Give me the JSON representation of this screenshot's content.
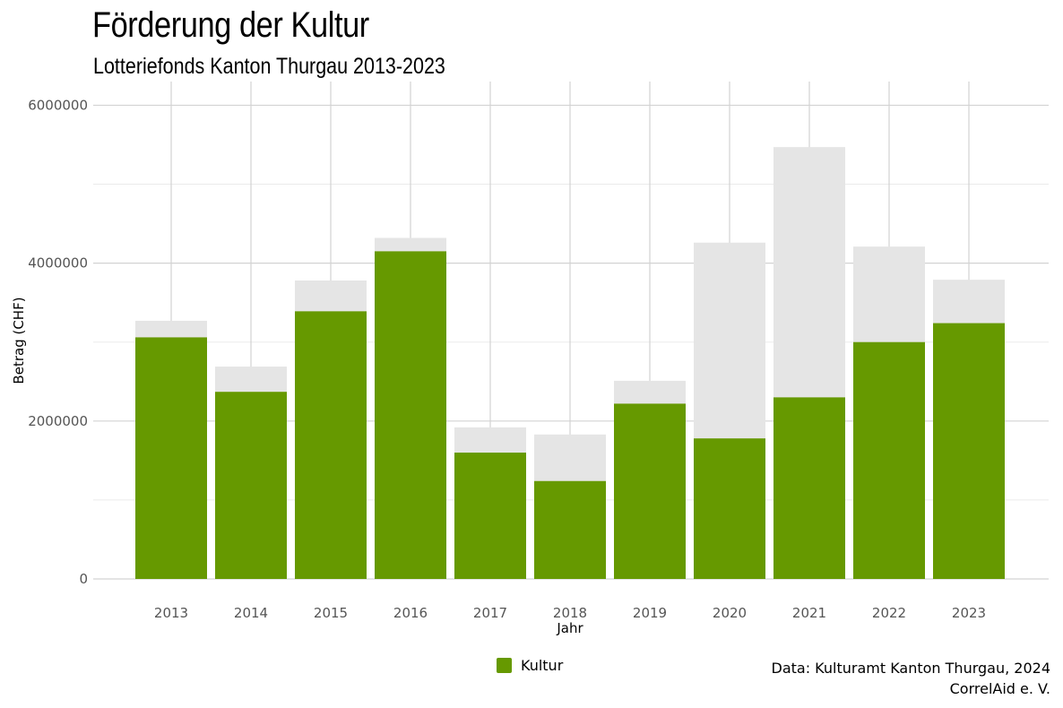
{
  "title": "Förderung der Kultur",
  "subtitle": "Lotteriefonds Kanton Thurgau 2013-2023",
  "caption": [
    "Data: Kulturamt Kanton Thurgau, 2024",
    "CorrelAid e. V."
  ],
  "colors": {
    "kultur": "#669900",
    "total": "#e5e5e5",
    "grid_major": "#d3d3d3",
    "grid_minor": "#ebebeb"
  },
  "chart_data": {
    "type": "bar",
    "xlabel": "Jahr",
    "ylabel": "Betrag (CHF)",
    "ylim": [
      0,
      6300000
    ],
    "yticks": [
      0,
      2000000,
      4000000,
      6000000
    ],
    "ytick_labels": [
      "0",
      "2000000",
      "4000000",
      "6000000"
    ],
    "categories": [
      "2013",
      "2014",
      "2015",
      "2016",
      "2017",
      "2018",
      "2019",
      "2020",
      "2021",
      "2022",
      "2023"
    ],
    "series": [
      {
        "name": "",
        "values": [
          3270000,
          2690000,
          3780000,
          4320000,
          1920000,
          1830000,
          2510000,
          4260000,
          5470000,
          4210000,
          3790000
        ]
      },
      {
        "name": "Kultur",
        "values": [
          3060000,
          2370000,
          3390000,
          4150000,
          1600000,
          1240000,
          2220000,
          1780000,
          2300000,
          3000000,
          3240000
        ]
      }
    ],
    "legend": {
      "position": "bottom",
      "entries": [
        "Kultur"
      ]
    },
    "grid": true
  }
}
